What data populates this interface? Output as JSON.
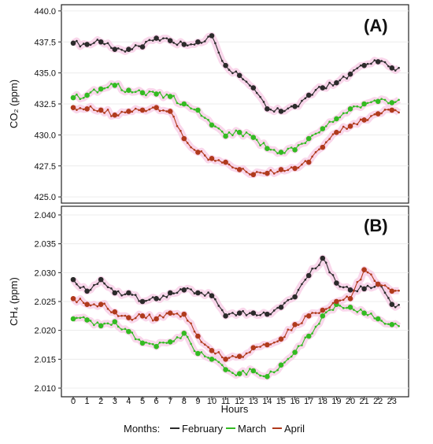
{
  "chart_data": [
    {
      "panel_label": "(A)",
      "type": "line",
      "ylabel": "CO₂ (ppm)",
      "ylim": [
        424.5,
        440.5
      ],
      "yticks": [
        "425.0",
        "427.5",
        "430.0",
        "432.5",
        "435.0",
        "437.5",
        "440.0"
      ],
      "ytick_values": [
        425.0,
        427.5,
        430.0,
        432.5,
        435.0,
        437.5,
        440.0
      ],
      "x": [
        0,
        1,
        2,
        3,
        4,
        5,
        6,
        7,
        8,
        9,
        10,
        11,
        12,
        13,
        14,
        15,
        16,
        17,
        18,
        19,
        20,
        21,
        22,
        23
      ],
      "series": [
        {
          "name": "February",
          "color": "#2b2b2b",
          "values": [
            437.4,
            437.3,
            437.5,
            436.9,
            436.9,
            437.1,
            437.8,
            437.6,
            437.3,
            437.5,
            438.0,
            435.6,
            434.8,
            433.8,
            432.1,
            431.9,
            432.3,
            433.2,
            433.8,
            434.2,
            434.9,
            435.6,
            435.9,
            435.4
          ]
        },
        {
          "name": "March",
          "color": "#33bb22",
          "values": [
            433.0,
            433.2,
            433.7,
            434.0,
            433.6,
            433.4,
            433.3,
            433.1,
            432.5,
            432.0,
            430.8,
            429.9,
            430.2,
            429.8,
            428.9,
            428.6,
            428.8,
            429.7,
            430.5,
            431.3,
            432.1,
            432.5,
            432.7,
            432.6
          ]
        },
        {
          "name": "April",
          "color": "#b03a1c",
          "values": [
            432.2,
            432.1,
            432.0,
            431.6,
            431.9,
            432.0,
            432.2,
            431.9,
            429.7,
            428.6,
            428.1,
            427.8,
            427.2,
            426.8,
            426.9,
            427.2,
            427.3,
            427.8,
            429.0,
            430.2,
            430.7,
            431.2,
            431.7,
            432.0
          ]
        }
      ]
    },
    {
      "panel_label": "(B)",
      "type": "line",
      "ylabel": "CH₄ (ppm)",
      "ylim": [
        2.0085,
        2.0415
      ],
      "yticks": [
        "2.010",
        "2.015",
        "2.020",
        "2.025",
        "2.030",
        "2.035",
        "2.040"
      ],
      "ytick_values": [
        2.01,
        2.015,
        2.02,
        2.025,
        2.03,
        2.035,
        2.04
      ],
      "x": [
        0,
        1,
        2,
        3,
        4,
        5,
        6,
        7,
        8,
        9,
        10,
        11,
        12,
        13,
        14,
        15,
        16,
        17,
        18,
        19,
        20,
        21,
        22,
        23
      ],
      "series": [
        {
          "name": "February",
          "color": "#2b2b2b",
          "values": [
            2.0288,
            2.0268,
            2.0288,
            2.0265,
            2.0265,
            2.025,
            2.0255,
            2.0265,
            2.027,
            2.0265,
            2.026,
            2.0225,
            2.023,
            2.023,
            2.0228,
            2.024,
            2.0258,
            2.0295,
            2.0325,
            2.0282,
            2.027,
            2.0272,
            2.028,
            2.0245
          ]
        },
        {
          "name": "March",
          "color": "#33bb22",
          "values": [
            2.022,
            2.0218,
            2.0208,
            2.0215,
            2.0198,
            2.0178,
            2.0172,
            2.018,
            2.0195,
            2.016,
            2.015,
            2.0132,
            2.0125,
            2.013,
            2.012,
            2.014,
            2.0162,
            2.019,
            2.0225,
            2.0245,
            2.024,
            2.023,
            2.022,
            2.021
          ]
        },
        {
          "name": "April",
          "color": "#b03a1c",
          "values": [
            2.0255,
            2.0245,
            2.0245,
            2.0232,
            2.0222,
            2.0225,
            2.022,
            2.023,
            2.0228,
            2.019,
            2.0165,
            2.015,
            2.0155,
            2.017,
            2.0175,
            2.0185,
            2.021,
            2.0225,
            2.0235,
            2.025,
            2.0255,
            2.0305,
            2.028,
            2.0268
          ]
        }
      ]
    }
  ],
  "xaxis": {
    "xlabel": "Hours",
    "ticks": [
      "0",
      "1",
      "2",
      "3",
      "4",
      "5",
      "6",
      "7",
      "8",
      "9",
      "10",
      "11",
      "12",
      "13",
      "14",
      "15",
      "16",
      "17",
      "18",
      "19",
      "20",
      "21",
      "22",
      "23"
    ]
  },
  "legend": {
    "title": "Months:",
    "entries": [
      {
        "label": "February",
        "color": "#2b2b2b"
      },
      {
        "label": "March",
        "color": "#33bb22"
      },
      {
        "label": "April",
        "color": "#b03a1c"
      }
    ],
    "placement": "bottom"
  },
  "colors": {
    "band": "#f7c9e4"
  }
}
